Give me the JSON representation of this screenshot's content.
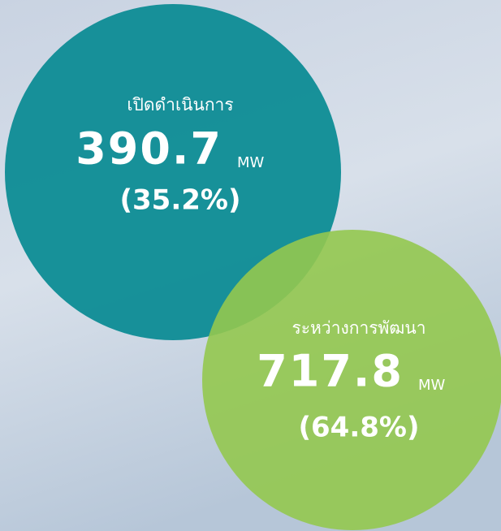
{
  "circles": [
    {
      "label": "เปิดดำเนินการ",
      "value": "390.7",
      "unit": "MW",
      "share": "(35.2%)"
    },
    {
      "label": "ระหว่างการพัฒนา",
      "value": "717.8",
      "unit": "MW",
      "share": "(64.8%)"
    }
  ]
}
